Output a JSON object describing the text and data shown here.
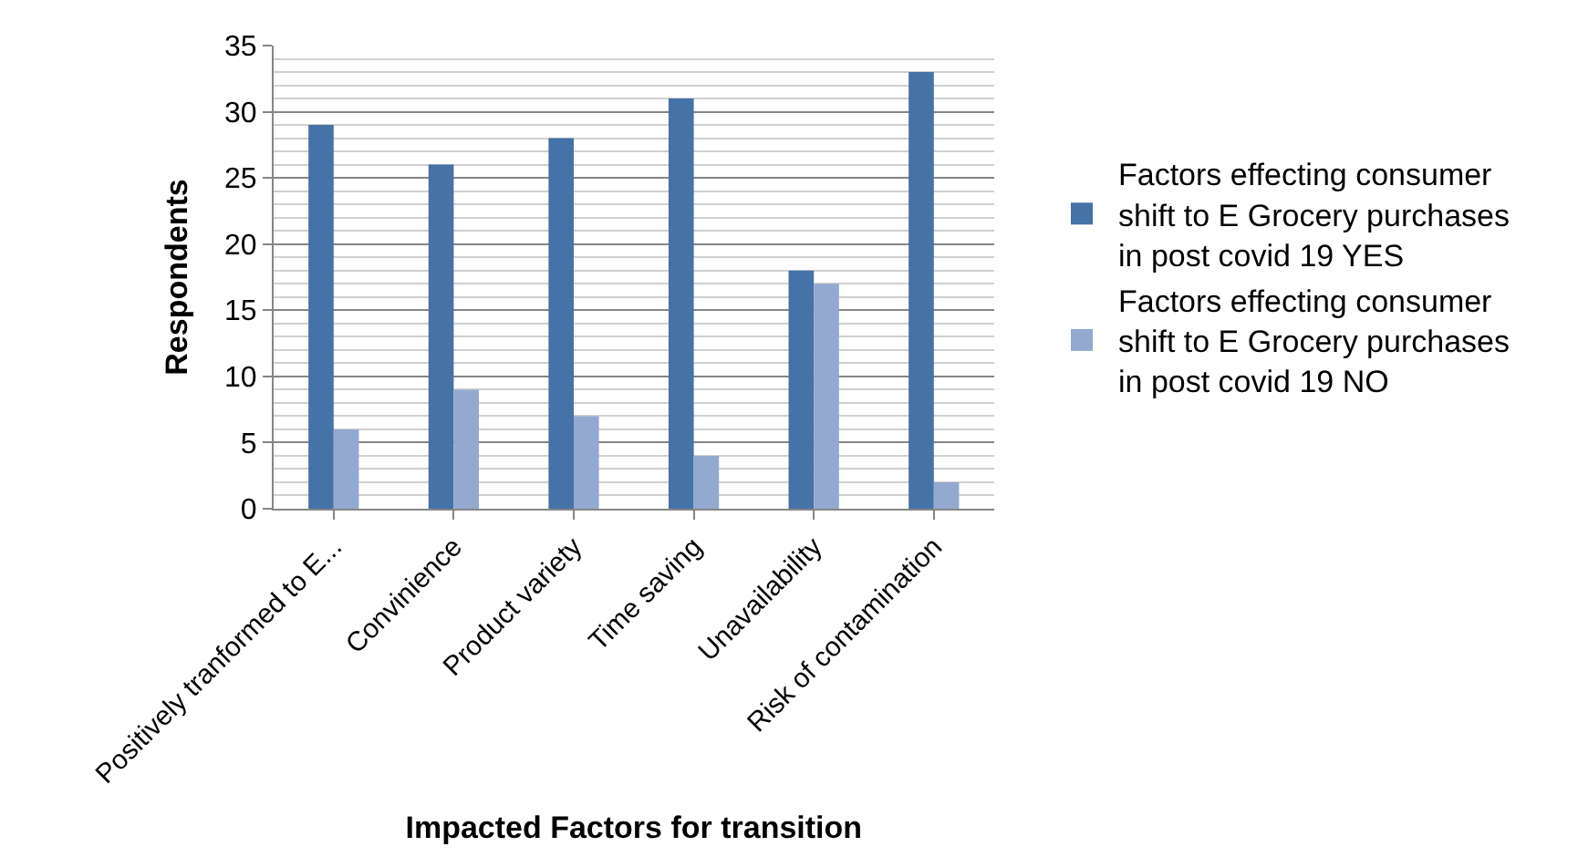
{
  "chart_data": {
    "type": "bar",
    "xlabel": "Impacted Factors for transition",
    "ylabel": "Respondents",
    "categories": [
      "Positively tranformed to E...",
      "Convinience",
      "Product variety",
      "Time saving",
      "Unavailability",
      "Risk of contamination"
    ],
    "series": [
      {
        "name": "Factors effecting consumer shift to E Grocery purchases in post covid 19 YES",
        "color": "#4572a7",
        "values": [
          29,
          26,
          28,
          31,
          18,
          33
        ]
      },
      {
        "name": "Factors effecting consumer shift to E Grocery purchases in post covid 19 NO",
        "color": "#93a9cf",
        "values": [
          6,
          9,
          7,
          4,
          17,
          2
        ]
      }
    ],
    "ylim": [
      0,
      35
    ],
    "yticks": [
      0,
      5,
      10,
      15,
      20,
      25,
      30,
      35
    ],
    "grid": "y",
    "legend": "right"
  }
}
